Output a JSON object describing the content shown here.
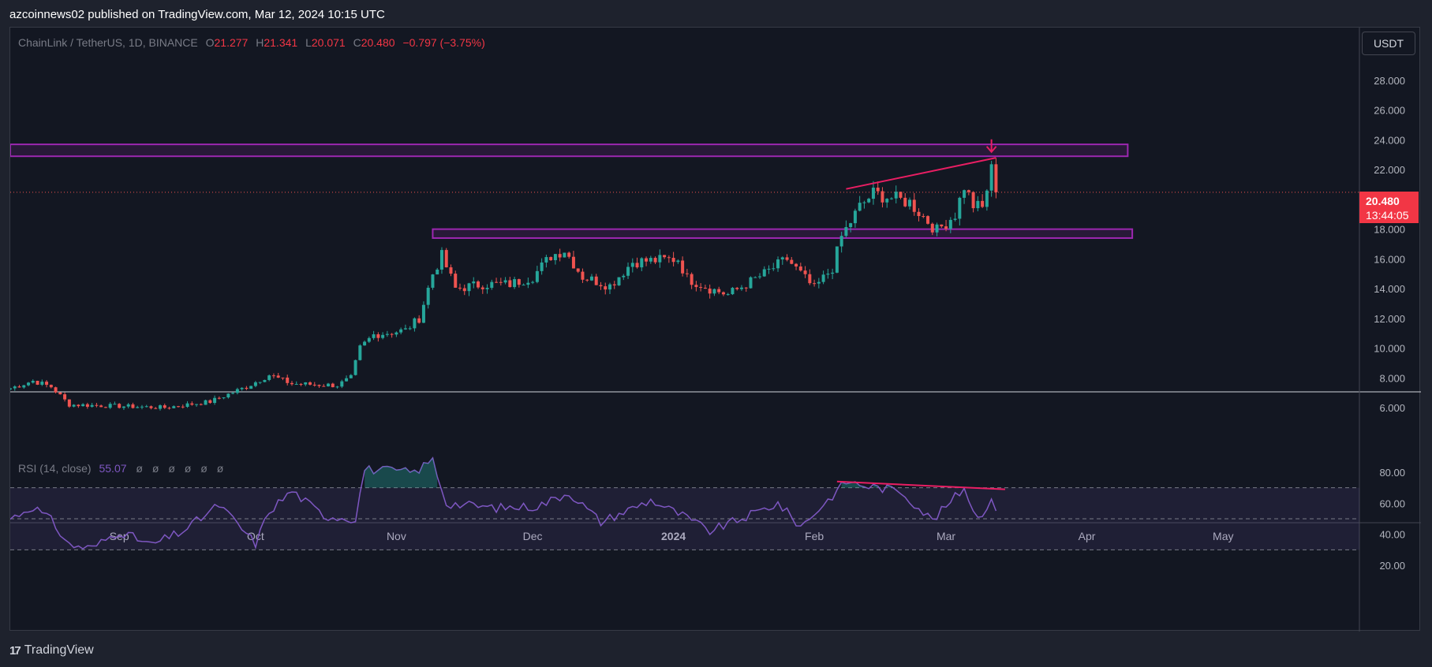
{
  "header": {
    "published": "azcoinnews02 published on TradingView.com, Mar 12, 2024 10:15 UTC"
  },
  "legend": {
    "symbol": "ChainLink / TetherUS, 1D, BINANCE",
    "o_label": "O",
    "o": "21.277",
    "h_label": "H",
    "h": "21.341",
    "l_label": "L",
    "l": "20.071",
    "c_label": "C",
    "c": "20.480",
    "change": "−0.797 (−3.75%)"
  },
  "rsi_legend": {
    "label": "RSI (14, close)",
    "value": "55.07",
    "na": [
      "ø",
      "ø",
      "ø",
      "ø",
      "ø",
      "ø"
    ]
  },
  "price_scale": {
    "currency_button": "USDT",
    "current_price": "20.480",
    "countdown": "13:44:05"
  },
  "branding": {
    "logo": "17",
    "name": "TradingView"
  },
  "colors": {
    "up": "#26a69a",
    "down": "#ef5350",
    "zone": "#9c27b0",
    "trend": "#e91e63",
    "rsi": "#7e57c2"
  },
  "chart_data": [
    {
      "type": "candlestick",
      "title": "ChainLink / TetherUS, 1D, BINANCE",
      "x_ticks": [
        "Sep",
        "Oct",
        "Nov",
        "Dec",
        "2024",
        "Feb",
        "Mar",
        "Apr",
        "May"
      ],
      "y_ticks": [
        "6.000",
        "8.000",
        "10.000",
        "12.000",
        "14.000",
        "16.000",
        "18.000",
        "20.000",
        "22.000",
        "24.000",
        "26.000",
        "28.000"
      ],
      "ylim": [
        5.0,
        30.5
      ],
      "x_range": [
        "2023-08-08",
        "2024-05-31"
      ],
      "last_close": 20.48,
      "resistance_zone": {
        "from": "2023-08-08",
        "to": "2024-04-10",
        "low": 22.9,
        "high": 23.7
      },
      "support_zone": {
        "from": "2023-11-09",
        "to": "2024-04-11",
        "low": 17.4,
        "high": 18.0
      },
      "trendline": {
        "points": [
          [
            "2024-02-08",
            20.7
          ],
          [
            "2024-03-12",
            22.8
          ]
        ]
      },
      "marker": {
        "date": "2024-03-11",
        "price": 23.4,
        "shape": "arrow-down"
      },
      "anchors": [
        [
          "2023-08-08",
          7.3
        ],
        [
          "2023-08-13",
          7.8
        ],
        [
          "2023-08-17",
          7.4
        ],
        [
          "2023-08-21",
          6.2
        ],
        [
          "2023-09-01",
          6.1
        ],
        [
          "2023-09-11",
          6.0
        ],
        [
          "2023-09-21",
          6.4
        ],
        [
          "2023-09-29",
          7.4
        ],
        [
          "2023-10-04",
          8.2
        ],
        [
          "2023-10-09",
          7.6
        ],
        [
          "2023-10-19",
          7.5
        ],
        [
          "2023-10-22",
          8.0
        ],
        [
          "2023-10-24",
          10.0
        ],
        [
          "2023-10-27",
          10.9
        ],
        [
          "2023-11-03",
          11.2
        ],
        [
          "2023-11-06",
          12.0
        ],
        [
          "2023-11-09",
          15.0
        ],
        [
          "2023-11-11",
          16.2
        ],
        [
          "2023-11-14",
          14.0
        ],
        [
          "2023-11-20",
          14.3
        ],
        [
          "2023-11-26",
          14.3
        ],
        [
          "2023-12-01",
          14.8
        ],
        [
          "2023-12-05",
          16.2
        ],
        [
          "2023-12-08",
          16.6
        ],
        [
          "2023-12-12",
          14.8
        ],
        [
          "2023-12-18",
          14.2
        ],
        [
          "2023-12-23",
          15.8
        ],
        [
          "2023-12-28",
          15.9
        ],
        [
          "2024-01-02",
          16.0
        ],
        [
          "2024-01-04",
          14.7
        ],
        [
          "2024-01-09",
          14.0
        ],
        [
          "2024-01-13",
          13.6
        ],
        [
          "2024-01-21",
          15.0
        ],
        [
          "2024-01-26",
          16.0
        ],
        [
          "2024-02-01",
          14.0
        ],
        [
          "2024-02-05",
          15.4
        ],
        [
          "2024-02-07",
          17.5
        ],
        [
          "2024-02-11",
          19.5
        ],
        [
          "2024-02-14",
          20.4
        ],
        [
          "2024-02-22",
          19.8
        ],
        [
          "2024-02-28",
          17.9
        ],
        [
          "2024-03-03",
          19.0
        ],
        [
          "2024-03-05",
          20.9
        ],
        [
          "2024-03-07",
          19.6
        ],
        [
          "2024-03-09",
          19.4
        ],
        [
          "2024-03-11",
          22.0
        ],
        [
          "2024-03-12",
          20.48
        ]
      ]
    },
    {
      "type": "line",
      "title": "RSI (14, close)",
      "y_ticks": [
        "20.00",
        "40.00",
        "60.00",
        "80.00"
      ],
      "ylim": [
        12,
        90
      ],
      "band": {
        "upper": 70,
        "middle": 50,
        "lower": 30
      },
      "last_value": 55.07,
      "trendline": {
        "points": [
          [
            "2024-02-06",
            74
          ],
          [
            "2024-03-14",
            69
          ]
        ]
      },
      "anchors": [
        [
          "2023-08-08",
          50
        ],
        [
          "2023-08-13",
          58
        ],
        [
          "2023-08-17",
          49
        ],
        [
          "2023-08-21",
          33
        ],
        [
          "2023-08-26",
          31
        ],
        [
          "2023-09-01",
          42
        ],
        [
          "2023-09-08",
          33
        ],
        [
          "2023-09-15",
          42
        ],
        [
          "2023-09-23",
          59
        ],
        [
          "2023-10-01",
          34
        ],
        [
          "2023-10-04",
          55
        ],
        [
          "2023-10-09",
          68
        ],
        [
          "2023-10-16",
          52
        ],
        [
          "2023-10-23",
          50
        ],
        [
          "2023-10-25",
          82
        ],
        [
          "2023-11-05",
          80
        ],
        [
          "2023-11-09",
          88
        ],
        [
          "2023-11-12",
          60
        ],
        [
          "2023-11-23",
          57
        ],
        [
          "2023-12-02",
          58
        ],
        [
          "2023-12-09",
          67
        ],
        [
          "2023-12-16",
          48
        ],
        [
          "2023-12-27",
          62
        ],
        [
          "2024-01-03",
          52
        ],
        [
          "2024-01-09",
          42
        ],
        [
          "2024-01-16",
          50
        ],
        [
          "2024-01-24",
          60
        ],
        [
          "2024-01-29",
          45
        ],
        [
          "2024-02-04",
          62
        ],
        [
          "2024-02-08",
          74
        ],
        [
          "2024-02-13",
          71
        ],
        [
          "2024-02-20",
          68
        ],
        [
          "2024-02-27",
          49
        ],
        [
          "2024-03-05",
          70
        ],
        [
          "2024-03-08",
          50
        ],
        [
          "2024-03-11",
          63
        ],
        [
          "2024-03-12",
          55.07
        ]
      ]
    }
  ]
}
